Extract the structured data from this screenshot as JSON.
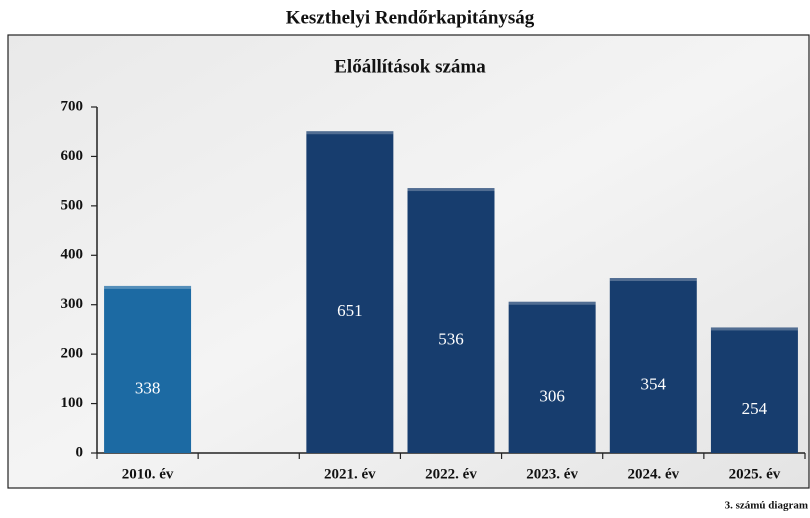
{
  "chart_data": {
    "type": "bar",
    "title": "Keszthelyi Rendőrkapitányság",
    "subtitle": "Előállítások száma",
    "footnote": "3. számú diagram",
    "categories": [
      "2010. év",
      null,
      "2021. év",
      "2022. év",
      "2023. év",
      "2024. év",
      "2025. év"
    ],
    "values": [
      338,
      null,
      651,
      536,
      306,
      354,
      254
    ],
    "colors": [
      "#1c6aa3",
      null,
      "#173d6e",
      "#173d6e",
      "#173d6e",
      "#173d6e",
      "#173d6e"
    ],
    "ylim": [
      0,
      700
    ],
    "yticks": [
      0,
      100,
      200,
      300,
      400,
      500,
      600,
      700
    ]
  }
}
